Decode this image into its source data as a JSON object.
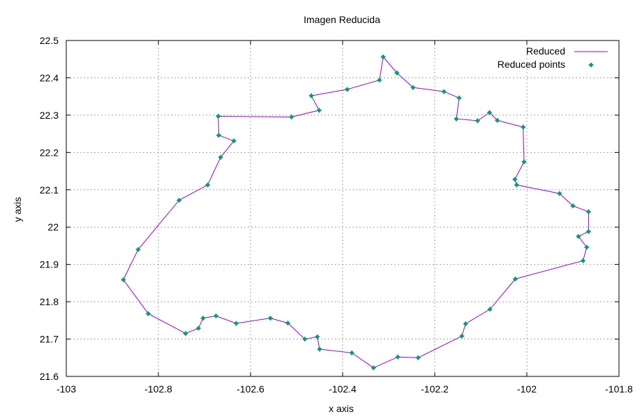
{
  "chart_data": {
    "type": "line",
    "title": "Imagen Reducida",
    "xlabel": "x axis",
    "ylabel": "y axis",
    "xlim": [
      -103,
      -101.8
    ],
    "ylim": [
      21.6,
      22.5
    ],
    "x_ticks": [
      -103,
      -102.8,
      -102.6,
      -102.4,
      -102.2,
      -102,
      -101.8
    ],
    "x_tick_labels": [
      "-103",
      "-102.8",
      "-102.6",
      "-102.4",
      "-102.2",
      "-102",
      "-101.8"
    ],
    "y_ticks": [
      21.6,
      21.7,
      21.8,
      21.9,
      22,
      22.1,
      22.2,
      22.3,
      22.4,
      22.5
    ],
    "y_tick_labels": [
      "21.6",
      "21.7",
      "21.8",
      "21.9",
      "22",
      "22.1",
      "22.2",
      "22.3",
      "22.4",
      "22.5"
    ],
    "grid": true,
    "legend_position": "top-right",
    "series": [
      {
        "name": "Reduced",
        "style": "line",
        "color": "#9400d3",
        "x": [
          -102.312,
          -102.282,
          -102.247,
          -102.18,
          -102.147,
          -102.153,
          -102.107,
          -102.081,
          -102.064,
          -102.008,
          -102.006,
          -102.026,
          -102.022,
          -101.929,
          -101.9,
          -101.866,
          -101.866,
          -101.888,
          -101.87,
          -101.878,
          -102.025,
          -102.08,
          -102.133,
          -102.141,
          -102.236,
          -102.28,
          -102.333,
          -102.38,
          -102.45,
          -102.455,
          -102.482,
          -102.519,
          -102.557,
          -102.631,
          -102.675,
          -102.703,
          -102.713,
          -102.741,
          -102.822,
          -102.876,
          -102.844,
          -102.755,
          -102.693,
          -102.665,
          -102.636,
          -102.669,
          -102.67,
          -102.511,
          -102.451,
          -102.468,
          -102.39,
          -102.32,
          -102.312
        ],
        "y": [
          22.456,
          22.413,
          22.374,
          22.363,
          22.346,
          22.29,
          22.285,
          22.307,
          22.286,
          22.268,
          22.175,
          22.128,
          22.113,
          22.09,
          22.057,
          22.041,
          21.988,
          21.975,
          21.946,
          21.91,
          21.861,
          21.78,
          21.741,
          21.708,
          21.65,
          21.652,
          21.623,
          21.663,
          21.673,
          21.706,
          21.7,
          21.743,
          21.756,
          21.742,
          21.762,
          21.756,
          21.729,
          21.715,
          21.768,
          21.859,
          21.94,
          22.072,
          22.113,
          22.187,
          22.231,
          22.246,
          22.297,
          22.295,
          22.313,
          22.352,
          22.369,
          22.394,
          22.456
        ]
      },
      {
        "name": "Reduced points",
        "style": "points",
        "color": "#009e73",
        "x": [
          -102.312,
          -102.282,
          -102.247,
          -102.18,
          -102.147,
          -102.153,
          -102.107,
          -102.081,
          -102.064,
          -102.008,
          -102.006,
          -102.026,
          -102.022,
          -101.929,
          -101.9,
          -101.866,
          -101.866,
          -101.888,
          -101.87,
          -101.878,
          -102.025,
          -102.08,
          -102.133,
          -102.141,
          -102.236,
          -102.28,
          -102.333,
          -102.38,
          -102.45,
          -102.455,
          -102.482,
          -102.519,
          -102.557,
          -102.631,
          -102.675,
          -102.703,
          -102.713,
          -102.741,
          -102.822,
          -102.876,
          -102.844,
          -102.755,
          -102.693,
          -102.665,
          -102.636,
          -102.669,
          -102.67,
          -102.511,
          -102.451,
          -102.468,
          -102.39,
          -102.32
        ],
        "y": [
          22.456,
          22.413,
          22.374,
          22.363,
          22.346,
          22.29,
          22.285,
          22.307,
          22.286,
          22.268,
          22.175,
          22.128,
          22.113,
          22.09,
          22.057,
          22.041,
          21.988,
          21.975,
          21.946,
          21.91,
          21.861,
          21.78,
          21.741,
          21.708,
          21.65,
          21.652,
          21.623,
          21.663,
          21.673,
          21.706,
          21.7,
          21.743,
          21.756,
          21.742,
          21.762,
          21.756,
          21.729,
          21.715,
          21.768,
          21.859,
          21.94,
          22.072,
          22.113,
          22.187,
          22.231,
          22.246,
          22.297,
          22.295,
          22.313,
          22.352,
          22.369,
          22.394
        ]
      }
    ]
  }
}
